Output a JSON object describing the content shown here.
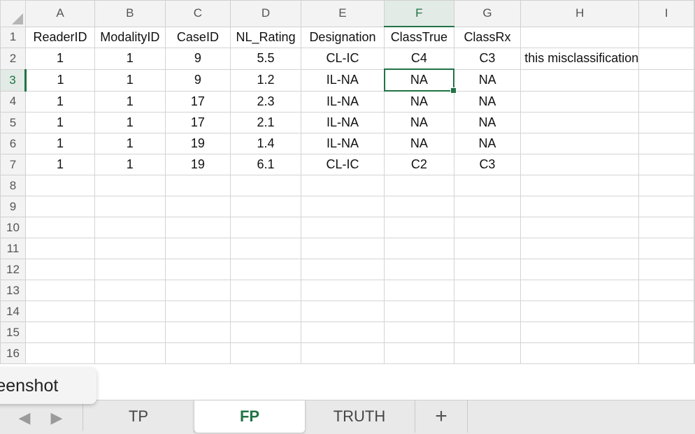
{
  "columns": [
    "A",
    "B",
    "C",
    "D",
    "E",
    "F",
    "G",
    "H",
    "I"
  ],
  "row_numbers": [
    "1",
    "2",
    "3",
    "4",
    "5",
    "6",
    "7",
    "8",
    "9",
    "10",
    "11",
    "12",
    "13",
    "14",
    "15",
    "16"
  ],
  "rows": [
    [
      "ReaderID",
      "ModalityID",
      "CaseID",
      "NL_Rating",
      "Designation",
      "ClassTrue",
      "ClassRx",
      "",
      ""
    ],
    [
      "1",
      "1",
      "9",
      "5.5",
      "CL-IC",
      "C4",
      "C3",
      "this misclassification",
      ""
    ],
    [
      "1",
      "1",
      "9",
      "1.2",
      "IL-NA",
      "NA",
      "NA",
      "",
      ""
    ],
    [
      "1",
      "1",
      "17",
      "2.3",
      "IL-NA",
      "NA",
      "NA",
      "",
      ""
    ],
    [
      "1",
      "1",
      "17",
      "2.1",
      "IL-NA",
      "NA",
      "NA",
      "",
      ""
    ],
    [
      "1",
      "1",
      "19",
      "1.4",
      "IL-NA",
      "NA",
      "NA",
      "",
      ""
    ],
    [
      "1",
      "1",
      "19",
      "6.1",
      "CL-IC",
      "C2",
      "C3",
      "",
      ""
    ],
    [
      "",
      "",
      "",
      "",
      "",
      "",
      "",
      "",
      ""
    ],
    [
      "",
      "",
      "",
      "",
      "",
      "",
      "",
      "",
      ""
    ],
    [
      "",
      "",
      "",
      "",
      "",
      "",
      "",
      "",
      ""
    ],
    [
      "",
      "",
      "",
      "",
      "",
      "",
      "",
      "",
      ""
    ],
    [
      "",
      "",
      "",
      "",
      "",
      "",
      "",
      "",
      ""
    ],
    [
      "",
      "",
      "",
      "",
      "",
      "",
      "",
      "",
      ""
    ],
    [
      "",
      "",
      "",
      "",
      "",
      "",
      "",
      "",
      ""
    ],
    [
      "",
      "",
      "",
      "",
      "",
      "",
      "",
      "",
      ""
    ],
    [
      "",
      "",
      "",
      "",
      "",
      "",
      "",
      "",
      ""
    ]
  ],
  "active_cell": {
    "row": 3,
    "col": "F"
  },
  "tooltip_text": "reenshot",
  "sheet_tabs": [
    {
      "label": "TP",
      "active": false
    },
    {
      "label": "FP",
      "active": true
    },
    {
      "label": "TRUTH",
      "active": false
    }
  ],
  "add_sheet_label": "+",
  "nav": {
    "prev_icon": "◀",
    "next_icon": "▶"
  },
  "colors": {
    "accent": "#217346",
    "header_bg": "#f3f3f3",
    "gridline": "#d4d4d4"
  }
}
